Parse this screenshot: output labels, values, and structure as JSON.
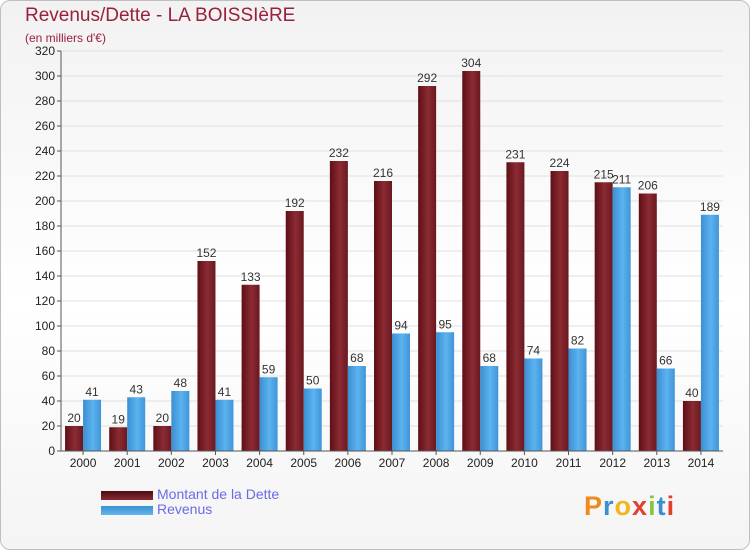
{
  "header": {
    "title": "Revenus/Dette - LA BOISSIèRE",
    "subtitle": "(en milliers d'€)"
  },
  "colors": {
    "debt": "#7a1f26",
    "revenue": "#4aa3e6",
    "title": "#9a1f3c",
    "legend_text": "#6a6ae8"
  },
  "legend": {
    "debt_label": "Montant de la Dette",
    "revenue_label": "Revenus"
  },
  "brand": {
    "logo_text": "Proxiti"
  },
  "chart_data": {
    "type": "bar",
    "title": "Revenus/Dette - LA BOISSIèRE",
    "subtitle": "(en milliers d'€)",
    "categories": [
      "2000",
      "2001",
      "2002",
      "2003",
      "2004",
      "2005",
      "2006",
      "2007",
      "2008",
      "2009",
      "2010",
      "2011",
      "2012",
      "2013",
      "2014"
    ],
    "series": [
      {
        "name": "Montant de la Dette",
        "values": [
          20,
          19,
          20,
          152,
          133,
          192,
          232,
          216,
          292,
          304,
          231,
          224,
          215,
          206,
          40
        ]
      },
      {
        "name": "Revenus",
        "values": [
          41,
          43,
          48,
          41,
          59,
          50,
          68,
          94,
          95,
          68,
          74,
          82,
          211,
          66,
          189
        ]
      }
    ],
    "ylim": [
      0,
      320
    ],
    "yticks": [
      0,
      20,
      40,
      60,
      80,
      100,
      120,
      140,
      160,
      180,
      200,
      220,
      240,
      260,
      280,
      300,
      320
    ],
    "grid": true,
    "legend_position": "bottom-left"
  }
}
